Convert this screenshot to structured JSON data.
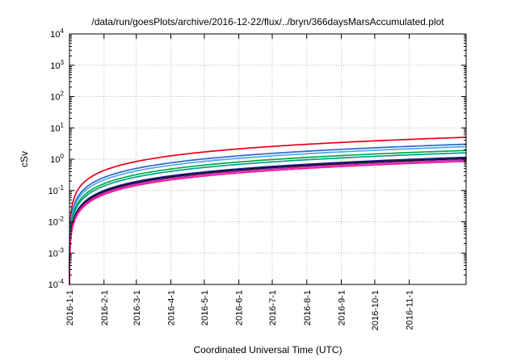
{
  "chart_data": {
    "type": "line",
    "title": "/data/run/goesPlots/archive/2016-12-22/flux/../bryn/366daysMarsAccumulated.plot",
    "xlabel": "Coordinated Universal Time (UTC)",
    "ylabel": "cSv",
    "x_axis": {
      "start": "2016-1-1",
      "total_days": 356,
      "ticks": [
        {
          "label": "2016-1-1",
          "day": 0
        },
        {
          "label": "2016-2-1",
          "day": 31
        },
        {
          "label": "2016-3-1",
          "day": 60
        },
        {
          "label": "2016-4-1",
          "day": 91
        },
        {
          "label": "2016-5-1",
          "day": 121
        },
        {
          "label": "2016-6-1",
          "day": 152
        },
        {
          "label": "2016-7-1",
          "day": 182
        },
        {
          "label": "2016-8-1",
          "day": 213
        },
        {
          "label": "2016-9-1",
          "day": 244
        },
        {
          "label": "2016-10-1",
          "day": 274
        },
        {
          "label": "2016-11-1",
          "day": 305
        }
      ]
    },
    "y_axis": {
      "scale": "log10",
      "min_exp": -4,
      "max_exp": 4,
      "tick_exponents": [
        -4,
        -3,
        -2,
        -1,
        0,
        1,
        2,
        3,
        4
      ]
    },
    "grid": {
      "enabled": true,
      "style": "dotted",
      "color": "#b8b8b8"
    },
    "border_color": "#000000",
    "accumulation_model": "value(t) = final_cSv * t / total_days (linear dose accumulation shown on log axis)",
    "series": [
      {
        "name": "red",
        "color": "#e8001e",
        "final_cSv": 5.0
      },
      {
        "name": "blue",
        "color": "#2f66d0",
        "final_cSv": 3.0
      },
      {
        "name": "light-blue",
        "color": "#4fa8e8",
        "final_cSv": 2.5
      },
      {
        "name": "green",
        "color": "#00a844",
        "final_cSv": 1.9
      },
      {
        "name": "teal",
        "color": "#00a089",
        "final_cSv": 1.6
      },
      {
        "name": "navy",
        "color": "#1a1a8c",
        "final_cSv": 1.15
      },
      {
        "name": "black",
        "color": "#141414",
        "final_cSv": 1.05
      },
      {
        "name": "magenta",
        "color": "#c020c0",
        "final_cSv": 0.95
      },
      {
        "name": "pink",
        "color": "#ff1493",
        "final_cSv": 0.85
      }
    ]
  }
}
